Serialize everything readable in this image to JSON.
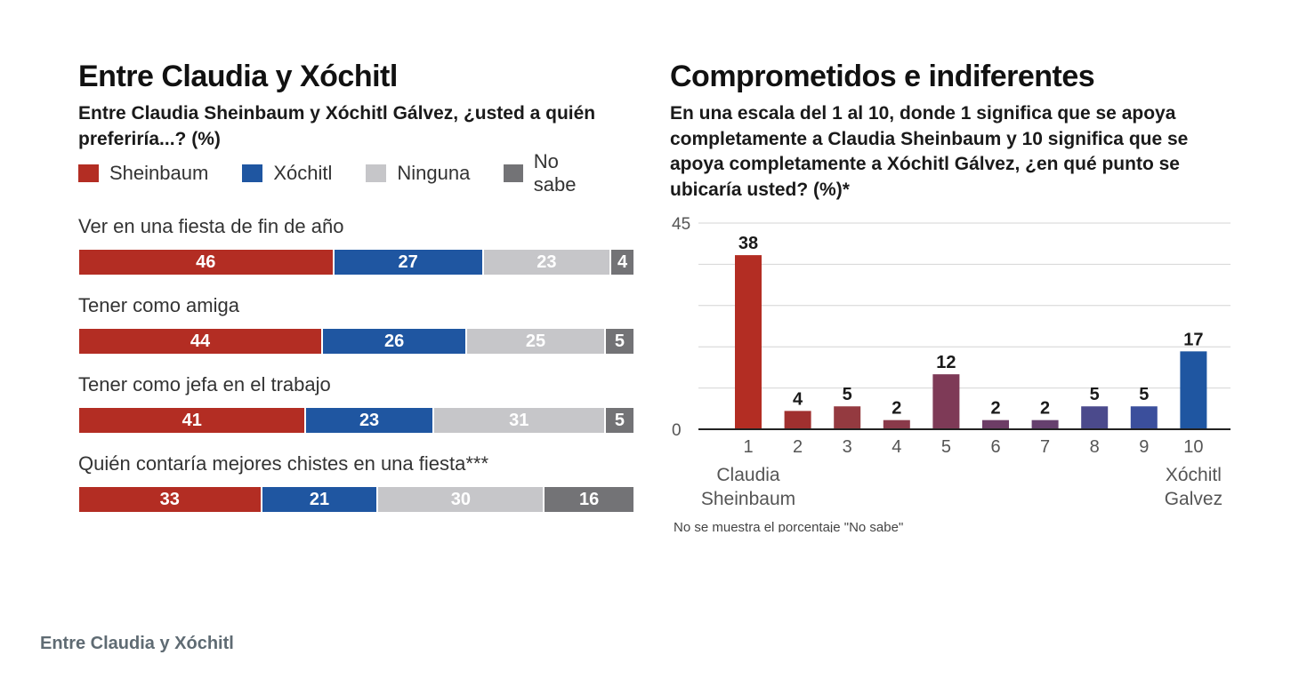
{
  "caption": "Entre Claudia y Xóchitl",
  "chart_data": [
    {
      "type": "bar",
      "orientation": "horizontal",
      "stacked": true,
      "title": "Entre Claudia y Xóchitl",
      "subtitle": "Entre Claudia Sheinbaum y Xóchitl Gálvez, ¿usted a quién preferiría...? (%)",
      "legend": [
        "Sheinbaum",
        "Xóchitl",
        "Ninguna",
        "No sabe"
      ],
      "legend_position": "top-left",
      "colors": [
        "#b32d23",
        "#1f56a1",
        "#c6c6c9",
        "#737376"
      ],
      "categories": [
        "Ver en una fiesta de fin de año",
        "Tener como amiga",
        "Tener como jefa en el trabajo",
        "Quién contaría mejores chistes en una fiesta***"
      ],
      "series": [
        {
          "name": "Sheinbaum",
          "values": [
            46,
            44,
            41,
            33
          ]
        },
        {
          "name": "Xóchitl",
          "values": [
            27,
            26,
            23,
            21
          ]
        },
        {
          "name": "Ninguna",
          "values": [
            23,
            25,
            31,
            30
          ]
        },
        {
          "name": "No sabe",
          "values": [
            4,
            5,
            5,
            16
          ]
        }
      ]
    },
    {
      "type": "bar",
      "title": "Comprometidos e indiferentes",
      "subtitle": "En una escala del 1 al 10, donde 1 significa que se apoya completamente a Claudia Sheinbaum y 10 significa que se apoya completamente a Xóchitl Gálvez, ¿en qué punto se ubicaría usted? (%)*",
      "categories": [
        "1",
        "2",
        "3",
        "4",
        "5",
        "6",
        "7",
        "8",
        "9",
        "10"
      ],
      "values": [
        38,
        4,
        5,
        2,
        12,
        2,
        2,
        5,
        5,
        17
      ],
      "colors": [
        "#b32d23",
        "#a0302f",
        "#943a40",
        "#8a3a4a",
        "#7e3a57",
        "#6d3d66",
        "#66406e",
        "#4b4a8c",
        "#3b4f9c",
        "#1f56a1"
      ],
      "ylim": [
        0,
        45
      ],
      "yticks": [
        0,
        45
      ],
      "grid": true,
      "end_labels": [
        "Claudia Sheinbaum",
        "Xóchitl Galvez"
      ],
      "footnote": "No se muestra el porcentaje \"No sabe\""
    }
  ]
}
